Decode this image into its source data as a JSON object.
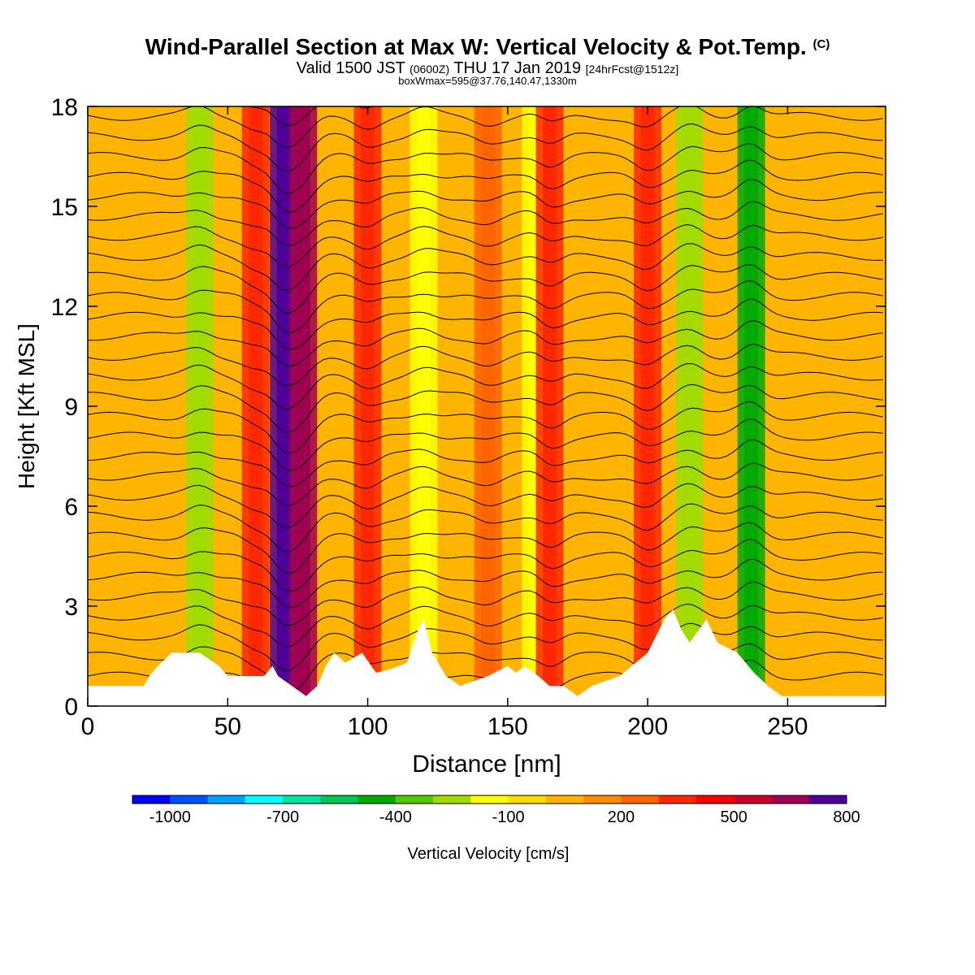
{
  "header": {
    "title": "Wind-Parallel Section at Max W: Vertical Velocity & Pot.Temp.",
    "copyright": "(C)",
    "valid_label": "Valid 1500 JST",
    "utc": "(0600Z)",
    "date": "THU 17 Jan 2019",
    "forecast": "[24hrFcst@1512z]",
    "box_info": "boxWmax=595@37.76,140.47,1330m"
  },
  "chart_data": {
    "type": "heatmap",
    "xlabel": "Distance [nm]",
    "ylabel": "Height [Kft MSL]",
    "xlim": [
      0,
      285
    ],
    "ylim": [
      0,
      18
    ],
    "x_ticks": [
      0,
      50,
      100,
      150,
      200,
      250
    ],
    "y_ticks": [
      0,
      3,
      6,
      9,
      12,
      15,
      18
    ],
    "background_value": 0,
    "features": [
      {
        "x": 40,
        "value": -250
      },
      {
        "x": 60,
        "value": 300
      },
      {
        "x": 70,
        "value": 900
      },
      {
        "x": 77,
        "value": 600
      },
      {
        "x": 100,
        "value": 300
      },
      {
        "x": 120,
        "value": -200
      },
      {
        "x": 143,
        "value": 200
      },
      {
        "x": 160,
        "value": -150
      },
      {
        "x": 165,
        "value": 350
      },
      {
        "x": 200,
        "value": 350
      },
      {
        "x": 215,
        "value": -300
      },
      {
        "x": 237,
        "value": -450
      }
    ],
    "terrain": [
      [
        0,
        0.6
      ],
      [
        20,
        0.6
      ],
      [
        22,
        0.9
      ],
      [
        25,
        1.2
      ],
      [
        30,
        1.6
      ],
      [
        40,
        1.6
      ],
      [
        47,
        1.2
      ],
      [
        50,
        0.9
      ],
      [
        63,
        0.9
      ],
      [
        66,
        1.2
      ],
      [
        68,
        0.9
      ],
      [
        73,
        0.6
      ],
      [
        78,
        0.3
      ],
      [
        82,
        0.6
      ],
      [
        85,
        1.2
      ],
      [
        88,
        1.6
      ],
      [
        92,
        1.3
      ],
      [
        98,
        1.6
      ],
      [
        103,
        1.0
      ],
      [
        108,
        1.1
      ],
      [
        114,
        1.3
      ],
      [
        118,
        2.3
      ],
      [
        120,
        2.6
      ],
      [
        123,
        1.6
      ],
      [
        128,
        0.9
      ],
      [
        133,
        0.6
      ],
      [
        143,
        0.9
      ],
      [
        150,
        1.2
      ],
      [
        153,
        1.0
      ],
      [
        156,
        1.2
      ],
      [
        161,
        0.9
      ],
      [
        165,
        0.6
      ],
      [
        170,
        0.6
      ],
      [
        175,
        0.3
      ],
      [
        180,
        0.6
      ],
      [
        190,
        0.9
      ],
      [
        200,
        1.6
      ],
      [
        206,
        2.6
      ],
      [
        209,
        2.9
      ],
      [
        212,
        2.3
      ],
      [
        215,
        1.9
      ],
      [
        221,
        2.6
      ],
      [
        225,
        1.9
      ],
      [
        232,
        1.6
      ],
      [
        238,
        1.0
      ],
      [
        243,
        0.6
      ],
      [
        248,
        0.3
      ],
      [
        260,
        0.3
      ],
      [
        285,
        0.3
      ]
    ],
    "colorbar": {
      "label": "Vertical Velocity [cm/s]",
      "tick_labels": [
        "-1000",
        "-700",
        "-400",
        "-100",
        "200",
        "500",
        "800"
      ],
      "colors": [
        "#0000ff",
        "#0050ff",
        "#00a0ff",
        "#00ffff",
        "#00e6a0",
        "#00c855",
        "#00aa00",
        "#55c800",
        "#a0dc00",
        "#ffff00",
        "#ffdc00",
        "#ffb400",
        "#ff8c00",
        "#ff6400",
        "#ff2800",
        "#ff0000",
        "#d20028",
        "#a00050",
        "#500096"
      ]
    }
  }
}
